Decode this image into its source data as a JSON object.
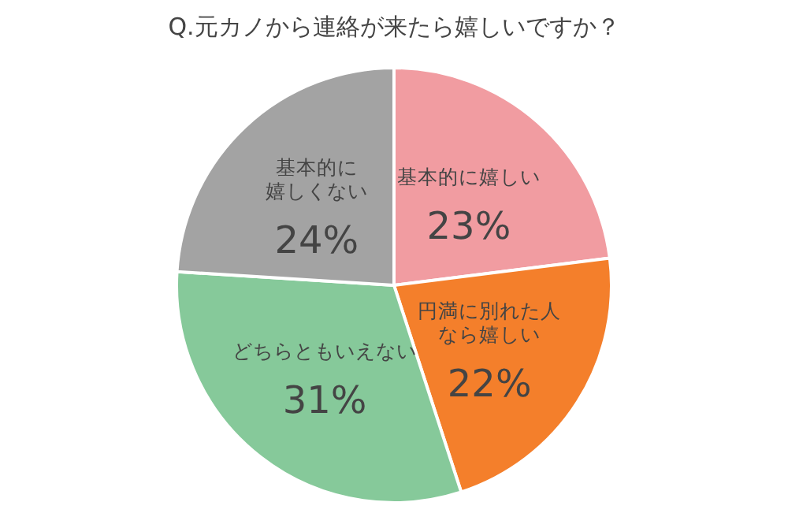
{
  "chart_data": {
    "type": "pie",
    "title": "Q.元カノから連絡が来たら嬉しいですか？",
    "categories": [
      "基本的に嬉しい",
      "円満に別れた人なら嬉しい",
      "どちらともいえない",
      "基本的に嬉しくない"
    ],
    "values": [
      23,
      22,
      31,
      24
    ],
    "value_labels": [
      "23%",
      "22%",
      "31%",
      "24%"
    ],
    "colors": [
      "#f19ca1",
      "#f47f2b",
      "#86c99a",
      "#a3a3a3"
    ]
  }
}
